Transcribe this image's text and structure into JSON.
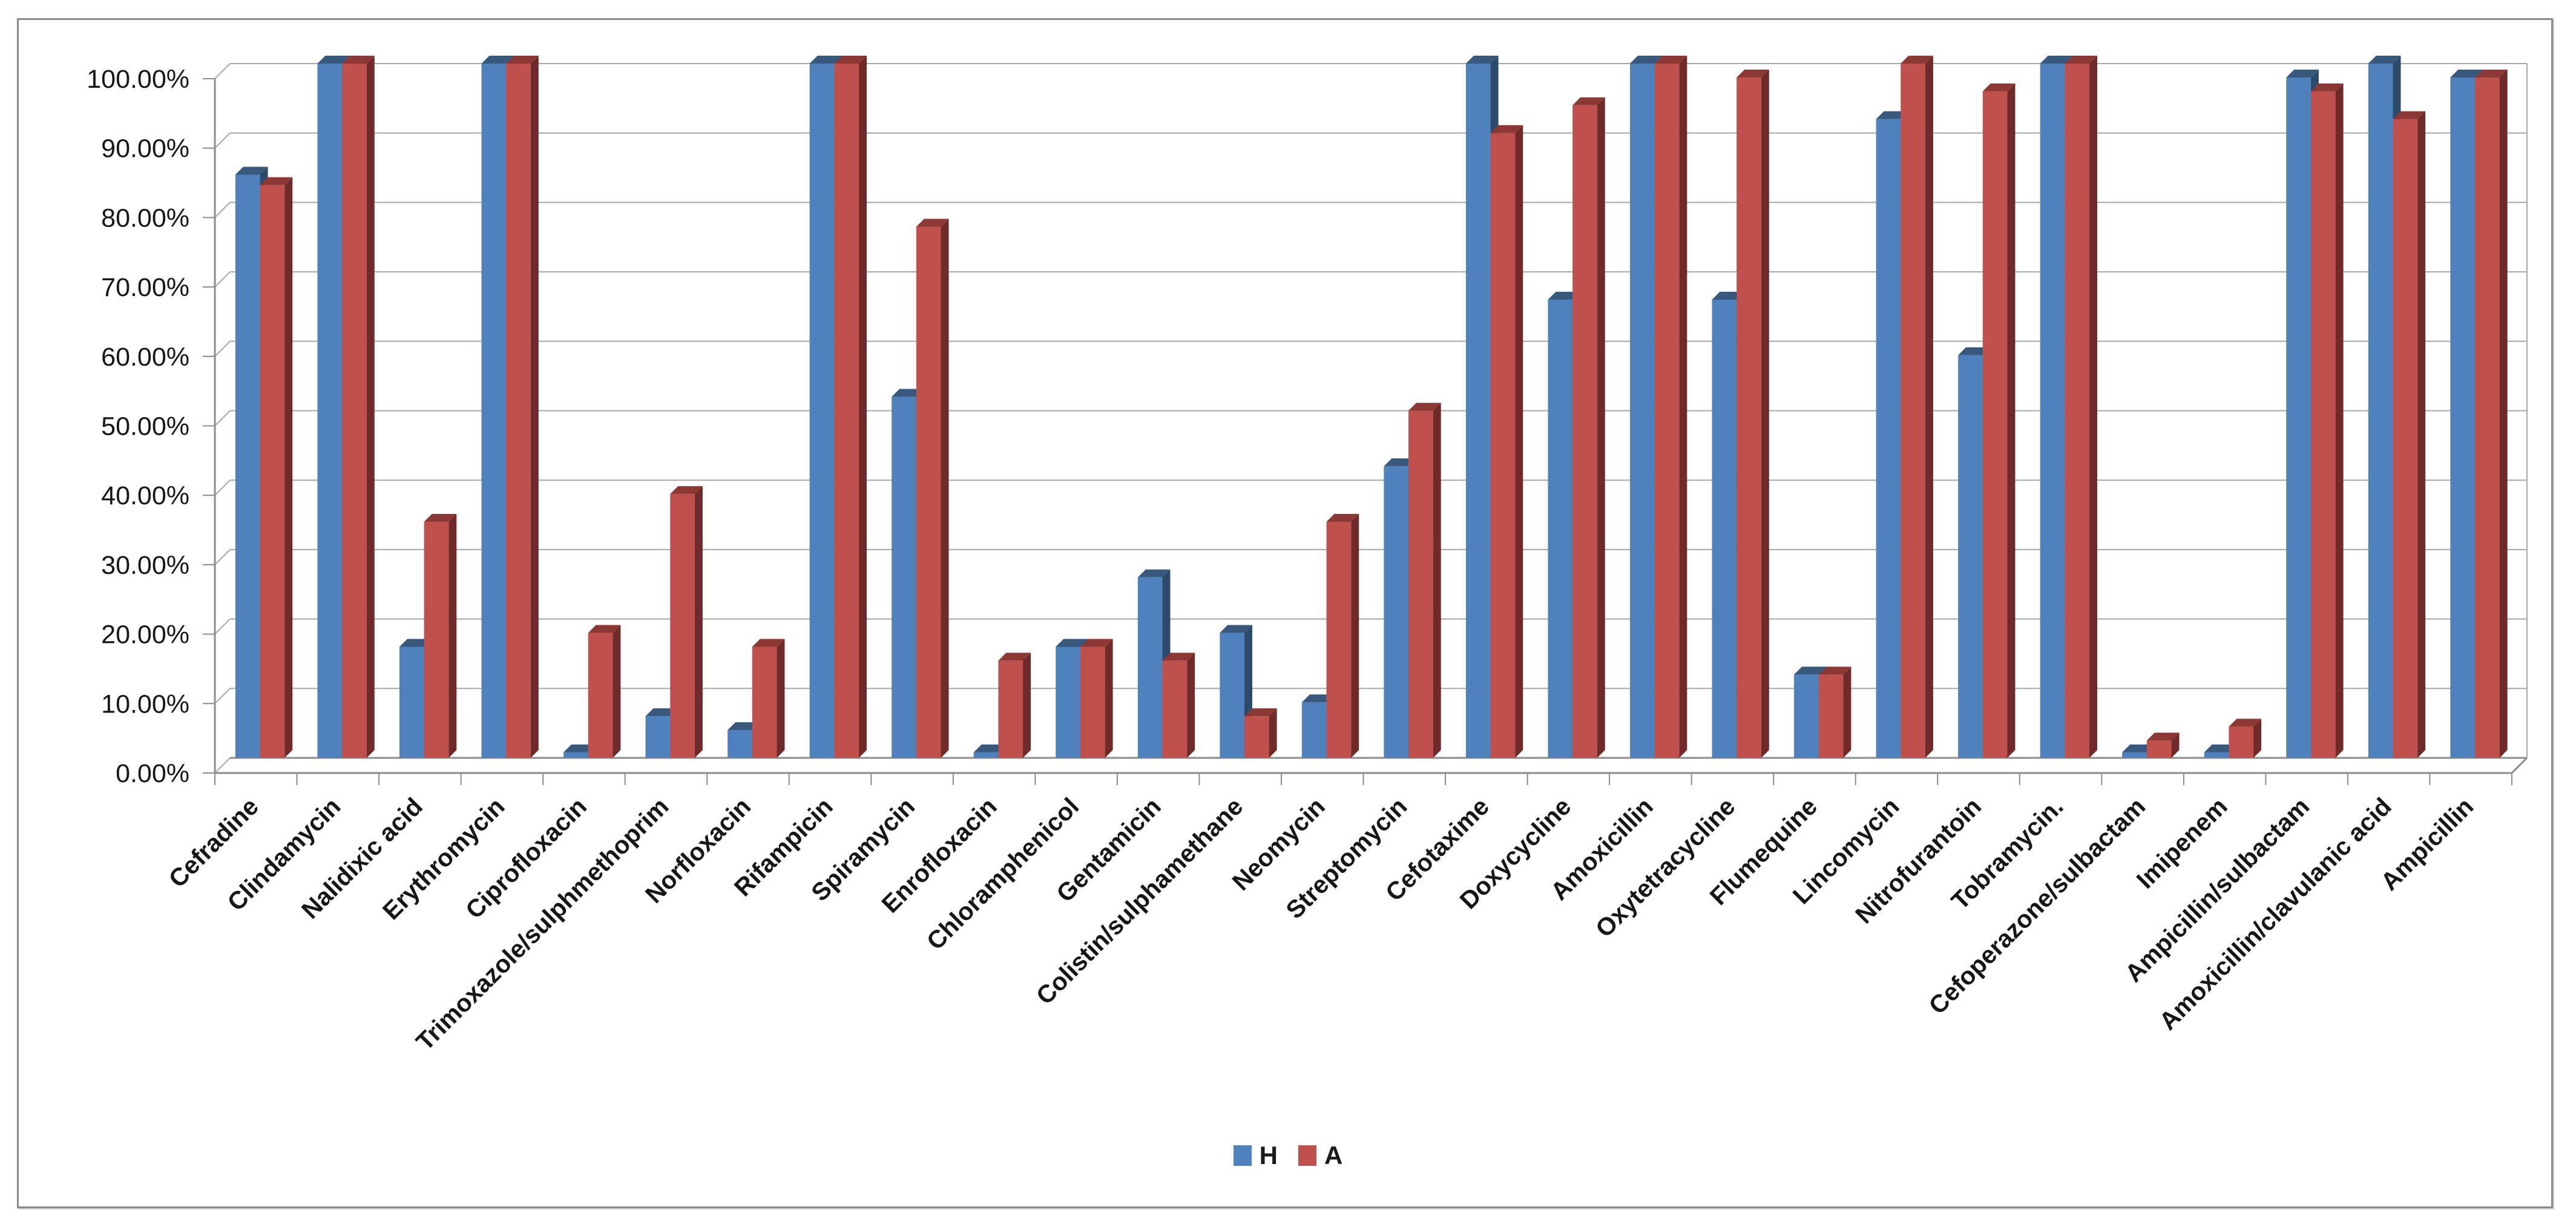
{
  "chart_data": {
    "type": "bar",
    "style": "excel-3d-clustered-column",
    "title": "",
    "xlabel": "",
    "ylabel": "",
    "ylim": [
      0,
      100
    ],
    "grid": true,
    "legend_position": "bottom",
    "y_ticks": [
      "0.00%",
      "10.00%",
      "20.00%",
      "30.00%",
      "40.00%",
      "50.00%",
      "60.00%",
      "70.00%",
      "80.00%",
      "90.00%",
      "100.00%"
    ],
    "categories": [
      "Cefradine",
      "Clindamycin",
      "Nalidixic acid",
      "Erythromycin",
      "Ciprofloxacin",
      "Trimoxazole/sulphmethoprim",
      "Norfloxacin",
      "Rifampicin",
      "Spiramycin",
      "Enrofloxacin",
      "Chloramphenicol",
      "Gentamicin",
      "Colistin/sulphamethane",
      "Neomycin",
      "Streptomycin",
      "Cefotaxime",
      "Doxycycline",
      "Amoxicillin",
      "Oxytetracycline",
      "Flumequine",
      "Lincomycin",
      "Nitrofurantoin",
      "Tobramycin.",
      "Cefoperazone/sulbactam",
      "Imipenem",
      "Ampicillin/sulbactam",
      "Amoxicillin/clavulanic acid",
      "Ampicillin"
    ],
    "series": [
      {
        "name": "H",
        "color": "#4F81BD",
        "top": "#38587E",
        "side": "#2E4A6B",
        "values": [
          84,
          100,
          16,
          100,
          0.8,
          6,
          4,
          100,
          52,
          0.8,
          16,
          26,
          18,
          8,
          42,
          100,
          66,
          100,
          66,
          12,
          92,
          58,
          100,
          0.8,
          0.8,
          98,
          100,
          98
        ]
      },
      {
        "name": "A",
        "color": "#C0504D",
        "top": "#8C3835",
        "side": "#6E2B29",
        "values": [
          82.5,
          100,
          34,
          100,
          18,
          38,
          16,
          100,
          76.5,
          14,
          16,
          14,
          6,
          34,
          50,
          90,
          94,
          100,
          98,
          12,
          100,
          96,
          100,
          2.5,
          4.5,
          96,
          92,
          98
        ]
      }
    ]
  }
}
